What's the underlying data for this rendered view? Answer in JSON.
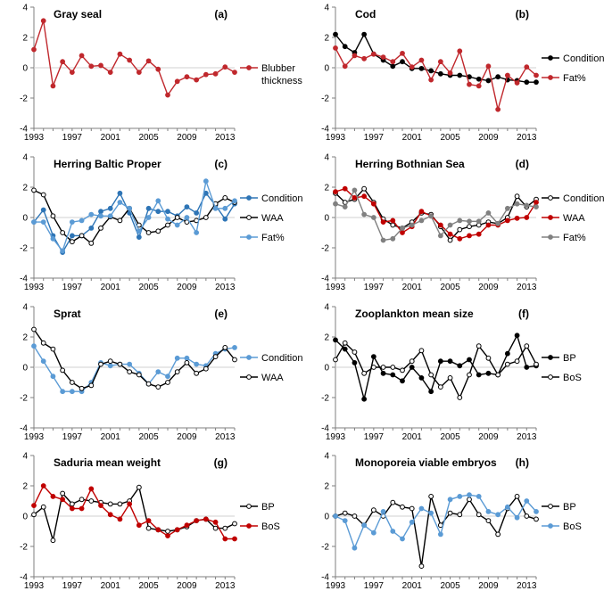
{
  "figure": {
    "description_free": true
  },
  "chart_data": [
    {
      "type": "line",
      "title": "Gray seal",
      "letter": "(a)",
      "x": [
        1993,
        1994,
        1995,
        1996,
        1997,
        1998,
        1999,
        2000,
        2001,
        2002,
        2003,
        2004,
        2005,
        2006,
        2007,
        2008,
        2009,
        2010,
        2011,
        2012,
        2013,
        2014
      ],
      "xticks": [
        "1993",
        "1997",
        "2001",
        "2005",
        "2009",
        "2013"
      ],
      "ylim": [
        -4,
        4
      ],
      "yticks": [
        "4",
        "2",
        "0",
        "-2",
        "-4"
      ],
      "series": [
        {
          "name": "Blubber thickness",
          "legend_lines": [
            "Blubber",
            "thickness"
          ],
          "color": "#C0282D",
          "marker": "filled",
          "values": [
            1.2,
            3.1,
            -1.2,
            0.4,
            -0.3,
            0.8,
            0.1,
            0.15,
            -0.3,
            0.9,
            0.5,
            -0.3,
            0.45,
            -0.1,
            -1.8,
            -0.9,
            -0.6,
            -0.8,
            -0.45,
            -0.4,
            0.05,
            -0.3
          ]
        }
      ]
    },
    {
      "type": "line",
      "title": "Cod",
      "letter": "(b)",
      "x": [
        1993,
        1994,
        1995,
        1996,
        1997,
        1998,
        1999,
        2000,
        2001,
        2002,
        2003,
        2004,
        2005,
        2006,
        2007,
        2008,
        2009,
        2010,
        2011,
        2012,
        2013,
        2014
      ],
      "xticks": [
        "1993",
        "1997",
        "2001",
        "2005",
        "2009",
        "2013"
      ],
      "ylim": [
        -4,
        4
      ],
      "yticks": [
        "4",
        "2",
        "0",
        "-2",
        "-4"
      ],
      "series": [
        {
          "name": "Condition",
          "color": "#000000",
          "marker": "filled",
          "values": [
            2.2,
            1.4,
            1.0,
            2.2,
            0.9,
            0.5,
            0.1,
            0.4,
            -0.05,
            -0.05,
            -0.2,
            -0.4,
            -0.5,
            -0.5,
            -0.6,
            -0.75,
            -0.85,
            -0.6,
            -0.8,
            -0.85,
            -0.95,
            -0.95
          ]
        },
        {
          "name": "Fat%",
          "color": "#C0282D",
          "marker": "filled",
          "values": [
            1.3,
            0.1,
            0.8,
            0.6,
            0.9,
            0.7,
            0.4,
            0.95,
            0.05,
            0.5,
            -0.8,
            0.4,
            -0.35,
            1.1,
            -1.1,
            -1.2,
            0.1,
            -2.75,
            -0.5,
            -1.0,
            0.05,
            -0.5
          ]
        }
      ]
    },
    {
      "type": "line",
      "title": "Herring Baltic Proper",
      "letter": "(c)",
      "x": [
        1993,
        1994,
        1995,
        1996,
        1997,
        1998,
        1999,
        2000,
        2001,
        2002,
        2003,
        2004,
        2005,
        2006,
        2007,
        2008,
        2009,
        2010,
        2011,
        2012,
        2013,
        2014
      ],
      "xticks": [
        "1993",
        "1997",
        "2001",
        "2005",
        "2009",
        "2013"
      ],
      "ylim": [
        -4,
        4
      ],
      "yticks": [
        "4",
        "2",
        "0",
        "-2",
        "-4"
      ],
      "series": [
        {
          "name": "Condition",
          "color": "#2E75B6",
          "marker": "filled",
          "values": [
            -0.3,
            0.5,
            -1.2,
            -2.3,
            -1.2,
            -1.2,
            -0.7,
            0.4,
            0.6,
            1.6,
            0.3,
            -1.3,
            0.6,
            0.4,
            0.4,
            0.1,
            0.7,
            0.3,
            1.6,
            0.8,
            -0.1,
            0.9
          ]
        },
        {
          "name": "WAA",
          "color": "#000000",
          "marker": "open",
          "values": [
            1.8,
            1.5,
            0.1,
            -1.0,
            -1.6,
            -1.2,
            -1.7,
            -0.7,
            0.05,
            -0.2,
            0.6,
            -0.5,
            -1.0,
            -0.9,
            -0.5,
            0.0,
            -0.3,
            -0.2,
            0.0,
            0.9,
            1.3,
            1.0
          ]
        },
        {
          "name": "Fat%",
          "color": "#5B9BD5",
          "marker": "filled",
          "values": [
            -0.3,
            -0.3,
            -1.4,
            -2.2,
            -0.3,
            -0.2,
            0.2,
            0.1,
            0.1,
            1.0,
            0.6,
            -0.9,
            0.0,
            1.1,
            -0.1,
            -0.5,
            0.0,
            -1.0,
            2.4,
            0.6,
            0.6,
            1.1
          ]
        }
      ]
    },
    {
      "type": "line",
      "title": "Herring Bothnian Sea",
      "letter": "(d)",
      "x": [
        1993,
        1994,
        1995,
        1996,
        1997,
        1998,
        1999,
        2000,
        2001,
        2002,
        2003,
        2004,
        2005,
        2006,
        2007,
        2008,
        2009,
        2010,
        2011,
        2012,
        2013,
        2014
      ],
      "xticks": [
        "1993",
        "1997",
        "2001",
        "2005",
        "2009",
        "2013"
      ],
      "ylim": [
        -4,
        4
      ],
      "yticks": [
        "4",
        "2",
        "0",
        "-2",
        "-4"
      ],
      "series": [
        {
          "name": "Condition",
          "color": "#000000",
          "marker": "open",
          "values": [
            1.6,
            1.0,
            1.2,
            1.9,
            1.0,
            -0.1,
            -0.5,
            -0.7,
            -0.3,
            0.3,
            0.2,
            -0.6,
            -1.5,
            -0.8,
            -0.6,
            -0.5,
            -0.3,
            -0.4,
            0.0,
            1.4,
            0.7,
            1.2
          ]
        },
        {
          "name": "WAA",
          "color": "#C00000",
          "marker": "filled",
          "values": [
            1.7,
            1.9,
            1.3,
            1.4,
            0.9,
            -0.3,
            -0.2,
            -1.0,
            -0.6,
            0.4,
            0.1,
            -0.5,
            -1.1,
            -1.4,
            -1.2,
            -1.1,
            -0.5,
            -0.5,
            -0.2,
            -0.05,
            0.0,
            1.0
          ]
        },
        {
          "name": "Fat%",
          "color": "#808080",
          "marker": "filled",
          "values": [
            0.9,
            0.7,
            1.8,
            0.2,
            0.0,
            -1.5,
            -1.4,
            -0.7,
            -0.5,
            -0.2,
            0.1,
            -1.2,
            -0.5,
            -0.2,
            -0.25,
            -0.25,
            0.3,
            -0.4,
            0.6,
            0.9,
            0.8,
            0.7
          ]
        }
      ]
    },
    {
      "type": "line",
      "title": "Sprat",
      "letter": "(e)",
      "x": [
        1993,
        1994,
        1995,
        1996,
        1997,
        1998,
        1999,
        2000,
        2001,
        2002,
        2003,
        2004,
        2005,
        2006,
        2007,
        2008,
        2009,
        2010,
        2011,
        2012,
        2013,
        2014
      ],
      "xticks": [
        "1993",
        "1997",
        "2001",
        "2005",
        "2009",
        "2013"
      ],
      "ylim": [
        -4,
        4
      ],
      "yticks": [
        "4",
        "2",
        "0",
        "-2",
        "-4"
      ],
      "series": [
        {
          "name": "Condition",
          "color": "#5B9BD5",
          "marker": "filled",
          "values": [
            1.4,
            0.4,
            -0.6,
            -1.6,
            -1.6,
            -1.6,
            -1.0,
            0.3,
            0.1,
            0.2,
            0.2,
            -0.4,
            -1.1,
            -0.3,
            -0.6,
            0.6,
            0.6,
            0.2,
            0.1,
            0.9,
            1.2,
            1.3
          ]
        },
        {
          "name": "WAA",
          "color": "#000000",
          "marker": "open",
          "values": [
            2.5,
            1.6,
            1.2,
            -0.2,
            -1.0,
            -1.4,
            -1.2,
            0.2,
            0.4,
            0.2,
            -0.3,
            -0.5,
            -1.1,
            -1.3,
            -1.0,
            -0.3,
            0.3,
            -0.4,
            -0.1,
            0.7,
            1.3,
            0.5
          ]
        }
      ]
    },
    {
      "type": "line",
      "title": "Zooplankton mean size",
      "letter": "(f)",
      "x": [
        1993,
        1994,
        1995,
        1996,
        1997,
        1998,
        1999,
        2000,
        2001,
        2002,
        2003,
        2004,
        2005,
        2006,
        2007,
        2008,
        2009,
        2010,
        2011,
        2012,
        2013,
        2014
      ],
      "xticks": [
        "1993",
        "1997",
        "2001",
        "2005",
        "2009",
        "2013"
      ],
      "ylim": [
        -4,
        4
      ],
      "yticks": [
        "4",
        "2",
        "0",
        "-2",
        "-4"
      ],
      "series": [
        {
          "name": "BP",
          "color": "#000000",
          "marker": "filled",
          "values": [
            1.8,
            1.2,
            0.3,
            -2.1,
            0.7,
            -0.4,
            -0.5,
            -0.9,
            0.0,
            -0.7,
            -1.6,
            0.4,
            0.4,
            0.1,
            0.5,
            -0.5,
            -0.4,
            -0.5,
            0.9,
            2.1,
            0.0,
            0.1
          ]
        },
        {
          "name": "BoS",
          "color": "#000000",
          "marker": "open",
          "values": [
            0.5,
            1.6,
            1.0,
            -0.4,
            0.0,
            0.0,
            0.0,
            -0.2,
            0.4,
            1.1,
            -0.5,
            -1.3,
            -0.7,
            -2.0,
            -0.5,
            1.4,
            0.6,
            -0.5,
            0.2,
            0.4,
            1.4,
            0.2
          ]
        }
      ]
    },
    {
      "type": "line",
      "title": "Saduria mean weight",
      "letter": "(g)",
      "x": [
        1993,
        1994,
        1995,
        1996,
        1997,
        1998,
        1999,
        2000,
        2001,
        2002,
        2003,
        2004,
        2005,
        2006,
        2007,
        2008,
        2009,
        2010,
        2011,
        2012,
        2013,
        2014
      ],
      "xticks": [
        "1993",
        "1997",
        "2001",
        "2005",
        "2009",
        "2013"
      ],
      "ylim": [
        -4,
        4
      ],
      "yticks": [
        "4",
        "2",
        "0",
        "-2",
        "-4"
      ],
      "series": [
        {
          "name": "BP",
          "color": "#000000",
          "marker": "open",
          "values": [
            0.1,
            0.6,
            -1.6,
            1.5,
            0.8,
            1.1,
            1.0,
            0.9,
            0.8,
            0.8,
            1.0,
            1.9,
            -0.8,
            -0.9,
            -1.0,
            -0.9,
            -0.7,
            -0.3,
            -0.2,
            -0.8,
            -0.8,
            -0.5
          ]
        },
        {
          "name": "BoS",
          "color": "#C00000",
          "marker": "filled",
          "values": [
            0.7,
            2.0,
            1.3,
            1.1,
            0.5,
            0.5,
            1.8,
            0.7,
            0.1,
            -0.2,
            0.8,
            -0.6,
            -0.3,
            -0.9,
            -1.3,
            -0.9,
            -0.6,
            -0.3,
            -0.2,
            -0.4,
            -1.5,
            -1.5
          ]
        }
      ]
    },
    {
      "type": "line",
      "title": "Monoporeia viable embryos",
      "letter": "(h)",
      "x": [
        1993,
        1994,
        1995,
        1996,
        1997,
        1998,
        1999,
        2000,
        2001,
        2002,
        2003,
        2004,
        2005,
        2006,
        2007,
        2008,
        2009,
        2010,
        2011,
        2012,
        2013,
        2014
      ],
      "xticks": [
        "1993",
        "1997",
        "2001",
        "2005",
        "2009",
        "2013"
      ],
      "ylim": [
        -4,
        4
      ],
      "yticks": [
        "4",
        "2",
        "0",
        "-2",
        "-4"
      ],
      "series": [
        {
          "name": "BP",
          "color": "#000000",
          "marker": "open",
          "values": [
            0.0,
            0.2,
            0.0,
            -0.6,
            0.4,
            0.0,
            0.9,
            0.6,
            0.5,
            -3.3,
            1.3,
            -0.6,
            0.2,
            0.1,
            1.1,
            0.1,
            -0.3,
            -1.2,
            0.5,
            1.3,
            0.0,
            -0.2
          ]
        },
        {
          "name": "BoS",
          "color": "#5B9BD5",
          "marker": "filled",
          "values": [
            0.0,
            -0.3,
            -2.1,
            -0.6,
            -1.1,
            0.3,
            -1.0,
            -1.5,
            -0.4,
            0.5,
            0.2,
            -1.2,
            1.1,
            1.3,
            1.4,
            1.3,
            0.3,
            0.1,
            0.6,
            -0.1,
            1.0,
            0.3
          ]
        }
      ]
    }
  ]
}
